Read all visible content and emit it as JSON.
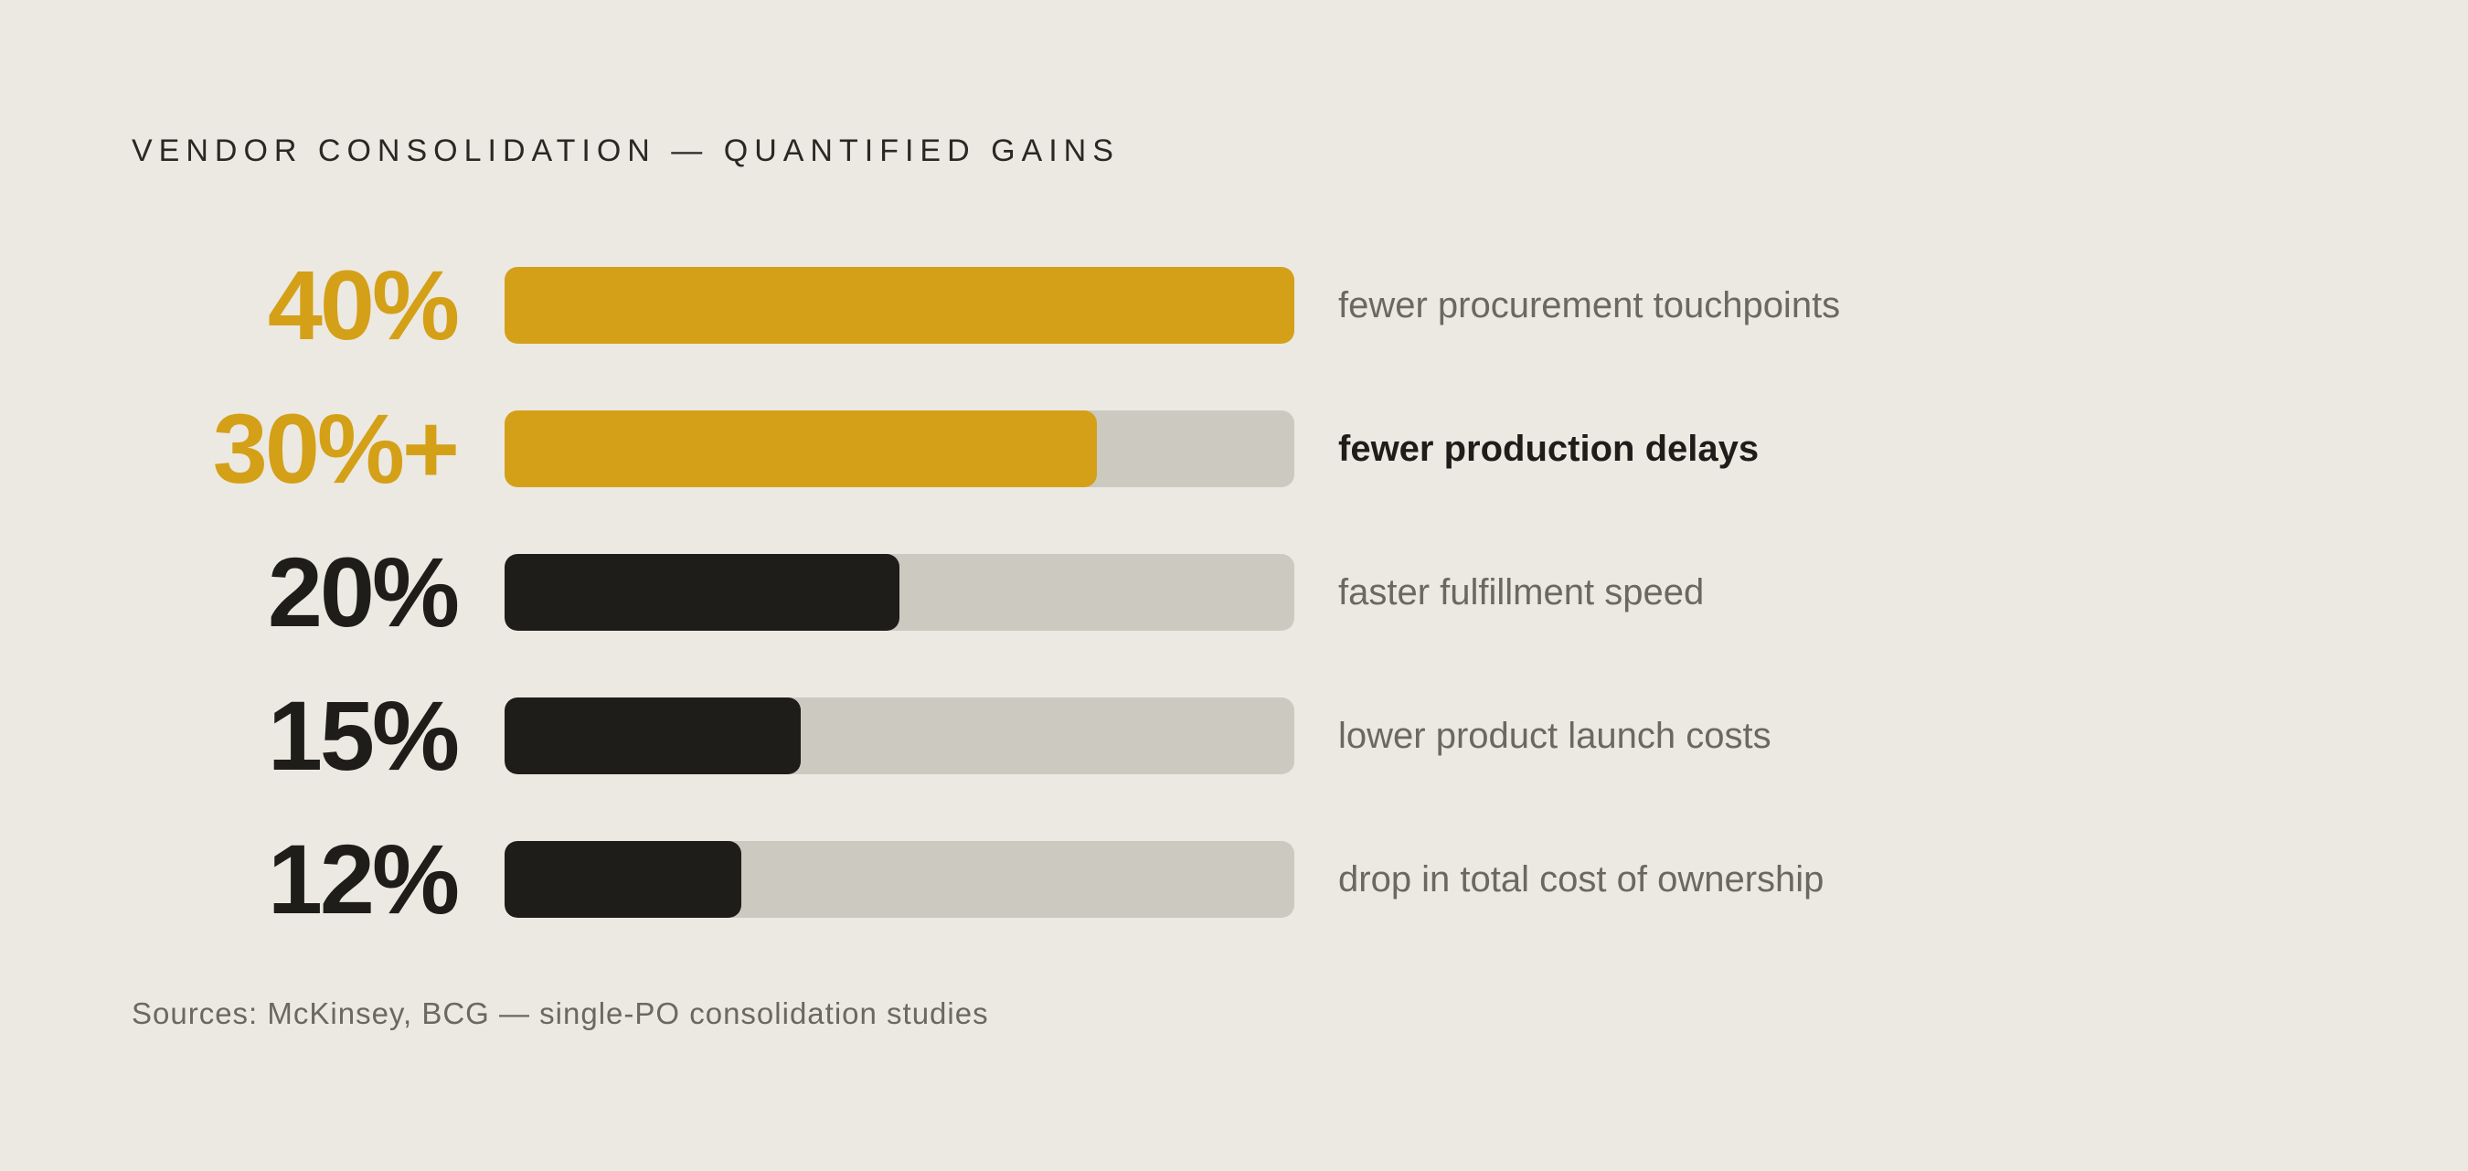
{
  "title": "VENDOR CONSOLIDATION — QUANTIFIED GAINS",
  "source": "Sources: McKinsey, BCG — single-PO consolidation studies",
  "colors": {
    "background": "#ECE9E2",
    "accent": "#D4A017",
    "dark": "#1E1D19",
    "track": "#CCC9C1",
    "muted_text": "#6B6860"
  },
  "chart_data": {
    "type": "bar",
    "orientation": "horizontal",
    "title": "VENDOR CONSOLIDATION — QUANTIFIED GAINS",
    "xlim": [
      0,
      40
    ],
    "grid": false,
    "rows": [
      {
        "value_label": "40%",
        "value": 40,
        "label": "fewer procurement touchpoints",
        "color": "#D4A017",
        "emphasis": false
      },
      {
        "value_label": "30%+",
        "value": 30,
        "label": "fewer production delays",
        "color": "#D4A017",
        "emphasis": true
      },
      {
        "value_label": "20%",
        "value": 20,
        "label": "faster fulfillment speed",
        "color": "#1E1D19",
        "emphasis": false
      },
      {
        "value_label": "15%",
        "value": 15,
        "label": "lower product launch costs",
        "color": "#1E1D19",
        "emphasis": false
      },
      {
        "value_label": "12%",
        "value": 12,
        "label": "drop in total cost of ownership",
        "color": "#1E1D19",
        "emphasis": false
      }
    ]
  }
}
